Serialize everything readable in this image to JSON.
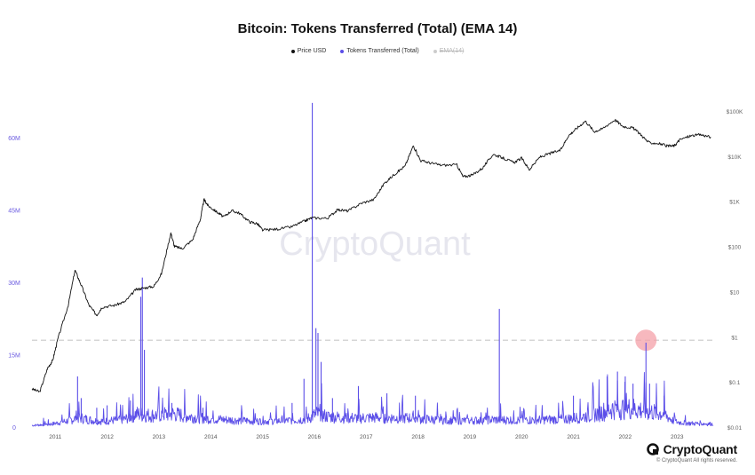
{
  "title": "Bitcoin: Tokens Transferred (Total) (EMA 14)",
  "legend": [
    {
      "label": "Price USD",
      "color": "#111111",
      "active": true
    },
    {
      "label": "Tokens Transferred (Total)",
      "color": "#5b4ee8",
      "active": true
    },
    {
      "label": "EMA(14)",
      "color": "#bbbbbb",
      "active": false
    }
  ],
  "watermark": "CryptoQuant",
  "footer": {
    "brand": "CryptoQuant",
    "copyright": "© CryptoQuant All rights reserved."
  },
  "colors": {
    "price": "#111111",
    "tokens": "#5b4ee8",
    "left_axis": "#6a5ae0",
    "right_axis": "#666666",
    "highlight": "#f4a0a8",
    "threshold": "#c8c8c8",
    "watermark": "#e6e6ee"
  },
  "chart_data": {
    "type": "line",
    "x_axis": {
      "tick_labels": [
        "2011",
        "2012",
        "2013",
        "2014",
        "2015",
        "2016",
        "2017",
        "2018",
        "2019",
        "2020",
        "2021",
        "2022",
        "2023"
      ],
      "range": [
        2010.6,
        2023.8
      ]
    },
    "left_axis": {
      "label": "",
      "tick_labels": [
        "0",
        "15M",
        "30M",
        "45M",
        "60M"
      ],
      "tick_values": [
        0,
        15000000,
        30000000,
        45000000,
        60000000
      ],
      "range": [
        0,
        60000000
      ]
    },
    "right_axis": {
      "scale": "log",
      "label": "",
      "tick_labels": [
        "$0.01",
        "$0.1",
        "$1",
        "$10",
        "$100",
        "$1K",
        "$10K",
        "$100K"
      ],
      "tick_values": [
        0.01,
        0.1,
        1,
        10,
        100,
        1000,
        10000,
        100000
      ]
    },
    "series": [
      {
        "name": "Price USD",
        "axis": "right",
        "points": [
          [
            2010.6,
            0.07
          ],
          [
            2010.75,
            0.06
          ],
          [
            2010.9,
            0.2
          ],
          [
            2011.0,
            0.3
          ],
          [
            2011.1,
            0.9
          ],
          [
            2011.3,
            5
          ],
          [
            2011.43,
            30
          ],
          [
            2011.55,
            14
          ],
          [
            2011.7,
            5
          ],
          [
            2011.85,
            3
          ],
          [
            2011.95,
            4.5
          ],
          [
            2012.2,
            5
          ],
          [
            2012.4,
            6
          ],
          [
            2012.6,
            11
          ],
          [
            2012.75,
            12
          ],
          [
            2012.95,
            13
          ],
          [
            2013.1,
            25
          ],
          [
            2013.28,
            200
          ],
          [
            2013.35,
            100
          ],
          [
            2013.5,
            90
          ],
          [
            2013.7,
            140
          ],
          [
            2013.85,
            400
          ],
          [
            2013.92,
            1100
          ],
          [
            2014.0,
            800
          ],
          [
            2014.15,
            600
          ],
          [
            2014.3,
            450
          ],
          [
            2014.45,
            620
          ],
          [
            2014.6,
            550
          ],
          [
            2014.8,
            350
          ],
          [
            2014.95,
            320
          ],
          [
            2015.05,
            230
          ],
          [
            2015.3,
            240
          ],
          [
            2015.6,
            270
          ],
          [
            2015.85,
            360
          ],
          [
            2016.0,
            430
          ],
          [
            2016.3,
            420
          ],
          [
            2016.5,
            650
          ],
          [
            2016.7,
            610
          ],
          [
            2016.95,
            900
          ],
          [
            2017.2,
            1100
          ],
          [
            2017.4,
            2500
          ],
          [
            2017.6,
            4000
          ],
          [
            2017.8,
            6000
          ],
          [
            2017.96,
            17000
          ],
          [
            2018.1,
            8000
          ],
          [
            2018.3,
            7000
          ],
          [
            2018.5,
            6300
          ],
          [
            2018.8,
            6400
          ],
          [
            2018.92,
            3500
          ],
          [
            2019.1,
            3800
          ],
          [
            2019.3,
            5500
          ],
          [
            2019.5,
            11000
          ],
          [
            2019.7,
            9000
          ],
          [
            2019.9,
            7200
          ],
          [
            2020.05,
            9000
          ],
          [
            2020.2,
            5000
          ],
          [
            2020.4,
            9500
          ],
          [
            2020.6,
            11500
          ],
          [
            2020.8,
            13500
          ],
          [
            2020.95,
            28000
          ],
          [
            2021.1,
            40000
          ],
          [
            2021.28,
            60000
          ],
          [
            2021.45,
            35000
          ],
          [
            2021.6,
            40000
          ],
          [
            2021.85,
            64000
          ],
          [
            2022.0,
            46000
          ],
          [
            2022.2,
            42000
          ],
          [
            2022.35,
            30000
          ],
          [
            2022.5,
            20000
          ],
          [
            2022.7,
            19000
          ],
          [
            2022.88,
            16500
          ],
          [
            2023.0,
            17000
          ],
          [
            2023.1,
            23000
          ],
          [
            2023.3,
            28000
          ],
          [
            2023.5,
            30000
          ],
          [
            2023.7,
            26500
          ]
        ]
      },
      {
        "name": "Tokens Transferred (Total)",
        "axis": "left",
        "baseline_points": [
          [
            2010.6,
            300000
          ],
          [
            2011.0,
            600000
          ],
          [
            2011.3,
            1200000
          ],
          [
            2011.5,
            1800000
          ],
          [
            2011.8,
            1200000
          ],
          [
            2012.0,
            1100000
          ],
          [
            2012.4,
            1500000
          ],
          [
            2012.6,
            2500000
          ],
          [
            2012.9,
            2200000
          ],
          [
            2013.3,
            2500000
          ],
          [
            2013.8,
            1800000
          ],
          [
            2014.0,
            1600000
          ],
          [
            2014.5,
            1300000
          ],
          [
            2015.0,
            1100000
          ],
          [
            2015.5,
            1200000
          ],
          [
            2015.9,
            1500000
          ],
          [
            2016.1,
            2500000
          ],
          [
            2016.3,
            2000000
          ],
          [
            2016.8,
            1700000
          ],
          [
            2017.3,
            1800000
          ],
          [
            2017.9,
            1700000
          ],
          [
            2018.5,
            1300000
          ],
          [
            2019.0,
            1200000
          ],
          [
            2019.5,
            1400000
          ],
          [
            2020.0,
            1300000
          ],
          [
            2020.5,
            1400000
          ],
          [
            2021.0,
            1600000
          ],
          [
            2021.5,
            2500000
          ],
          [
            2021.8,
            3500000
          ],
          [
            2022.2,
            3500000
          ],
          [
            2022.5,
            3000000
          ],
          [
            2022.8,
            2500000
          ],
          [
            2023.0,
            1000000
          ],
          [
            2023.3,
            700000
          ],
          [
            2023.7,
            600000
          ]
        ],
        "spikes": [
          [
            2011.48,
            10500000
          ],
          [
            2011.55,
            6000000
          ],
          [
            2011.85,
            4000000
          ],
          [
            2012.05,
            4500000
          ],
          [
            2012.5,
            5500000
          ],
          [
            2012.7,
            27000000
          ],
          [
            2012.73,
            31000000
          ],
          [
            2012.77,
            16000000
          ],
          [
            2013.3,
            5000000
          ],
          [
            2013.9,
            4000000
          ],
          [
            2015.62,
            5000000
          ],
          [
            2015.85,
            10000000
          ],
          [
            2016.01,
            67200000
          ],
          [
            2016.08,
            20500000
          ],
          [
            2016.12,
            19500000
          ],
          [
            2016.18,
            13500000
          ],
          [
            2016.4,
            6000000
          ],
          [
            2016.9,
            8500000
          ],
          [
            2017.45,
            7000000
          ],
          [
            2018.0,
            6500000
          ],
          [
            2019.62,
            24500000
          ],
          [
            2021.05,
            6500000
          ],
          [
            2021.7,
            10500000
          ],
          [
            2021.9,
            11500000
          ],
          [
            2022.05,
            10500000
          ],
          [
            2022.2,
            9000000
          ],
          [
            2022.45,
            17500000
          ],
          [
            2022.52,
            9000000
          ],
          [
            2022.8,
            6500000
          ]
        ]
      },
      {
        "name": "EMA(14)",
        "axis": "left",
        "visible": false,
        "points": []
      }
    ],
    "annotations": {
      "threshold_line": {
        "axis": "left",
        "value": 18000000,
        "style": "dashed"
      },
      "highlight_circle": {
        "x": 2022.45,
        "y": 18000000
      }
    },
    "grid": false,
    "legend_position": "top-center"
  }
}
